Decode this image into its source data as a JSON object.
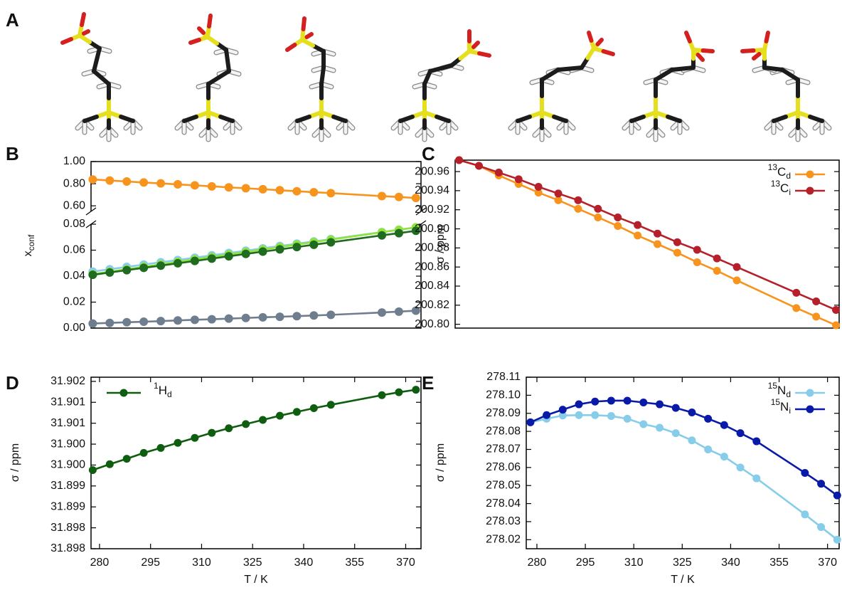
{
  "panel_a": {
    "label": "A"
  },
  "chart_data": [
    {
      "panel": "B",
      "type": "line",
      "ylabel": {
        "text": "x",
        "subscript": "conf"
      },
      "x": [
        278,
        283,
        288,
        293,
        298,
        303,
        308,
        313,
        318,
        323,
        328,
        333,
        338,
        343,
        348,
        363,
        368,
        373
      ],
      "xlim": [
        277.5,
        374.5
      ],
      "ylim": [
        0,
        0.08
      ],
      "yticks": [
        {
          "value": 0,
          "label": "0.00"
        },
        0.02,
        0.04,
        0.06,
        0.08
      ],
      "upper_ylim": [
        0.55,
        1
      ],
      "upper_yticks": [
        {
          "value": 0.6,
          "label": "0.60"
        },
        {
          "value": 0.8,
          "label": "0.80"
        },
        {
          "value": 1,
          "label": "1.00"
        }
      ],
      "series": [
        {
          "color": "#f7941d",
          "axis": "upper",
          "values": [
            0.838,
            0.829,
            0.82,
            0.811,
            0.803,
            0.794,
            0.785,
            0.776,
            0.767,
            0.759,
            0.75,
            0.741,
            0.732,
            0.723,
            0.715,
            0.688,
            0.68,
            0.671
          ]
        },
        {
          "color": "#87cdea",
          "values": [
            0.0435,
            0.0453,
            0.0471,
            0.0489,
            0.0507,
            0.0524,
            0.0542,
            0.056,
            0.0578,
            0.0596,
            0.0614,
            0.0632,
            0.065,
            0.0667,
            0.0685,
            0.0739,
            0.0757,
            0.0775
          ]
        },
        {
          "color": "#8fe33a",
          "values": [
            0.0415,
            0.0434,
            0.0453,
            0.0472,
            0.0491,
            0.051,
            0.0529,
            0.0548,
            0.0567,
            0.0586,
            0.0605,
            0.0624,
            0.0643,
            0.0662,
            0.0681,
            0.0738,
            0.0757,
            0.0776
          ]
        },
        {
          "color": "#1f6b1f",
          "values": [
            0.041,
            0.0428,
            0.0446,
            0.0464,
            0.0481,
            0.0499,
            0.0517,
            0.0535,
            0.0553,
            0.0571,
            0.0589,
            0.0606,
            0.0624,
            0.0642,
            0.066,
            0.0714,
            0.0731,
            0.0749
          ]
        },
        {
          "color": "#6f7e8e",
          "values": [
            0.0035,
            0.004,
            0.0045,
            0.0049,
            0.0054,
            0.0059,
            0.0064,
            0.0068,
            0.0073,
            0.0078,
            0.0083,
            0.0087,
            0.0092,
            0.0097,
            0.0102,
            0.012,
            0.0127,
            0.0134
          ]
        }
      ]
    },
    {
      "panel": "C",
      "type": "line",
      "ylabel": "σ / ppm",
      "x": [
        278,
        283,
        288,
        293,
        298,
        303,
        308,
        313,
        318,
        323,
        328,
        333,
        338,
        343,
        348,
        363,
        368,
        373
      ],
      "xlim": [
        277,
        373.8
      ],
      "ylim": [
        200.796,
        200.972
      ],
      "yticks": [
        {
          "value": 200.8,
          "label": "200.80"
        },
        200.82,
        200.84,
        200.86,
        200.88,
        {
          "value": 200.9,
          "label": "200.90"
        },
        200.92,
        200.94,
        200.96
      ],
      "legend": "upper right",
      "series": [
        {
          "name": "13Cd",
          "color": "#f7941d",
          "values": [
            200.972,
            200.966,
            200.956,
            200.947,
            200.938,
            200.93,
            200.921,
            200.912,
            200.903,
            200.893,
            200.884,
            200.875,
            200.865,
            200.856,
            200.846,
            200.817,
            200.808,
            200.799
          ]
        },
        {
          "name": "13Ci",
          "color": "#b5202a",
          "values": [
            200.972,
            200.966,
            200.959,
            200.952,
            200.944,
            200.937,
            200.93,
            200.921,
            200.912,
            200.904,
            200.895,
            200.886,
            200.878,
            200.869,
            200.86,
            200.833,
            200.824,
            200.815
          ]
        }
      ]
    },
    {
      "panel": "D",
      "type": "line",
      "ylabel": "σ / ppm",
      "xlabel": "T / K",
      "x": [
        278,
        283,
        288,
        293,
        298,
        303,
        308,
        313,
        318,
        323,
        328,
        333,
        338,
        343,
        348,
        363,
        368,
        373
      ],
      "xlim": [
        277.5,
        374.5
      ],
      "xticks": [
        280,
        295,
        310,
        325,
        340,
        355,
        370
      ],
      "ylim": [
        31.8975,
        31.9016
      ],
      "yticks": [
        {
          "value": 31.8975,
          "label": "31.898"
        },
        31.898,
        {
          "value": 31.8985,
          "label": "31.899"
        },
        31.899,
        {
          "value": 31.8995,
          "label": "31.900"
        },
        {
          "value": 31.9,
          "label": "31.900"
        },
        {
          "value": 31.9005,
          "label": "31.901"
        },
        31.901,
        {
          "value": 31.9015,
          "label": "31.902"
        }
      ],
      "legend": "upper left",
      "series": [
        {
          "name": "1Hd",
          "color": "#0f5e0f",
          "values": [
            31.89938,
            31.89952,
            31.89965,
            31.89979,
            31.89991,
            31.90003,
            31.90015,
            31.90027,
            31.90038,
            31.90048,
            31.90058,
            31.90068,
            31.90077,
            31.90086,
            31.90094,
            31.90117,
            31.90124,
            31.9013
          ]
        }
      ]
    },
    {
      "panel": "E",
      "type": "line",
      "ylabel": "σ / ppm",
      "xlabel": "T / K",
      "x": [
        278,
        283,
        288,
        293,
        298,
        303,
        308,
        313,
        318,
        323,
        328,
        333,
        338,
        343,
        348,
        363,
        368,
        373
      ],
      "xlim": [
        276.7,
        373.6
      ],
      "xticks": [
        280,
        295,
        310,
        325,
        340,
        355,
        370
      ],
      "ylim": [
        278.015,
        278.11
      ],
      "yticks": [
        278.02,
        278.03,
        278.04,
        278.05,
        278.06,
        278.07,
        278.08,
        278.09,
        {
          "value": 278.1,
          "label": "278.10"
        },
        278.11
      ],
      "legend": "upper right",
      "series": [
        {
          "name": "15Nd",
          "color": "#87cdea",
          "values": [
            278.085,
            278.087,
            278.0888,
            278.089,
            278.089,
            278.0885,
            278.087,
            278.084,
            278.082,
            278.079,
            278.075,
            278.07,
            278.066,
            278.06,
            278.054,
            278.034,
            278.027,
            278.02
          ]
        },
        {
          "name": "15Ni",
          "color": "#0a1aa8",
          "values": [
            278.085,
            278.089,
            278.092,
            278.095,
            278.0965,
            278.097,
            278.097,
            278.096,
            278.095,
            278.093,
            278.0905,
            278.087,
            278.0835,
            278.079,
            278.0745,
            278.057,
            278.051,
            278.0445
          ]
        }
      ]
    }
  ]
}
